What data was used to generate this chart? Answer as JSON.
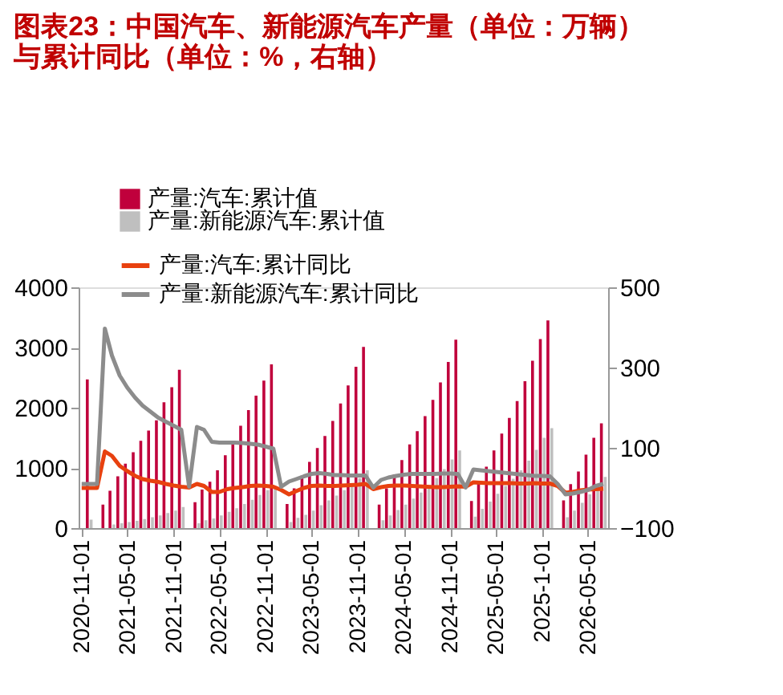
{
  "chart_data": {
    "type": "bar",
    "title": "图表23：中国汽车、新能源汽车产量（单位：万辆）与累计同比（单位：%，右轴）",
    "x": [
      "2020-11",
      "2020-12",
      "2021-01",
      "2021-02",
      "2021-03",
      "2021-04",
      "2021-05",
      "2021-06",
      "2021-07",
      "2021-08",
      "2021-09",
      "2021-10",
      "2021-11",
      "2021-12",
      "2022-01",
      "2022-02",
      "2022-03",
      "2022-04",
      "2022-05",
      "2022-06",
      "2022-07",
      "2022-08",
      "2022-09",
      "2022-10",
      "2022-11",
      "2022-12",
      "2023-01",
      "2023-02",
      "2023-03",
      "2023-04",
      "2023-05",
      "2023-06",
      "2023-07",
      "2023-08",
      "2023-09",
      "2023-10",
      "2023-11",
      "2023-12",
      "2024-01",
      "2024-02",
      "2024-03",
      "2024-04",
      "2024-05",
      "2024-06",
      "2024-07",
      "2024-08",
      "2024-09",
      "2024-10",
      "2024-11",
      "2024-12",
      "2025-01",
      "2025-02",
      "2025-03",
      "2025-04",
      "2025-05",
      "2025-06",
      "2025-07",
      "2025-08",
      "2025-09",
      "2025-10",
      "2025-11",
      "2025-12",
      "2026-01",
      "2026-02",
      "2026-03",
      "2026-04",
      "2026-05",
      "2026-06",
      "2026-07"
    ],
    "series": [
      {
        "name": "产量:汽车:累计值",
        "color": "#c0003c",
        "values": [
          null,
          2470,
          null,
          390,
          620,
          860,
          1070,
          1260,
          1450,
          1620,
          1790,
          2090,
          2340,
          2630,
          null,
          430,
          640,
          770,
          960,
          1210,
          1450,
          1700,
          1960,
          2200,
          2450,
          2720,
          null,
          400,
          660,
          870,
          1100,
          1330,
          1530,
          1780,
          2070,
          2370,
          2680,
          3010,
          null,
          390,
          660,
          890,
          1130,
          1390,
          1610,
          1860,
          2130,
          2420,
          2760,
          3130,
          null,
          450,
          760,
          1020,
          1290,
          1570,
          1830,
          2110,
          2440,
          2780,
          3140,
          3450,
          null,
          460,
          730,
          940,
          1220,
          1500,
          1740
        ]
      },
      {
        "name": "产量:新能源汽车:累计值",
        "color": "#bfbfbf",
        "values": [
          null,
          140,
          null,
          null,
          60,
          80,
          100,
          120,
          150,
          180,
          210,
          250,
          290,
          350,
          null,
          80,
          130,
          160,
          210,
          270,
          330,
          400,
          470,
          550,
          630,
          700,
          null,
          100,
          170,
          220,
          290,
          380,
          460,
          540,
          630,
          730,
          830,
          960,
          null,
          130,
          210,
          300,
          390,
          490,
          590,
          700,
          830,
          980,
          1140,
          1290,
          null,
          190,
          320,
          440,
          570,
          700,
          820,
          960,
          1120,
          1300,
          1500,
          1660,
          null,
          180,
          290,
          420,
          560,
          700,
          850
        ]
      },
      {
        "name": "产量:汽车:累计同比",
        "type": "line",
        "axis": "y2",
        "color": "#e8410f",
        "values": [
          0,
          0,
          0,
          91,
          80,
          55,
          42,
          30,
          22,
          18,
          15,
          10,
          6,
          3,
          1,
          10,
          5,
          -10,
          -10,
          -3,
          0,
          2,
          5,
          6,
          5,
          3,
          -5,
          -16,
          -8,
          0,
          5,
          6,
          5,
          5,
          6,
          7,
          8,
          10,
          -3,
          2,
          5,
          6,
          6,
          5,
          4,
          3,
          2,
          2,
          3,
          4,
          3,
          14,
          13,
          12,
          12,
          12,
          12,
          11,
          11,
          12,
          11,
          11,
          5,
          -12,
          -10,
          -6,
          -4,
          -3,
          -2
        ]
      },
      {
        "name": "产量:新能源汽车:累计同比",
        "type": "line",
        "axis": "y2",
        "color": "#8c8c8c",
        "values": [
          10,
          10,
          10,
          397,
          330,
          280,
          250,
          225,
          205,
          190,
          175,
          165,
          155,
          145,
          3,
          152,
          145,
          115,
          113,
          113,
          113,
          112,
          110,
          108,
          103,
          98,
          3,
          16,
          22,
          29,
          35,
          37,
          35,
          32,
          32,
          31,
          31,
          31,
          1,
          20,
          26,
          30,
          33,
          35,
          35,
          35,
          35,
          36,
          36,
          35,
          1,
          46,
          44,
          42,
          40,
          38,
          36,
          34,
          32,
          30,
          30,
          29,
          10,
          -16,
          -14,
          -10,
          -5,
          5,
          10
        ]
      }
    ],
    "xlim": [
      "2020-10-20",
      "2026-07-20"
    ],
    "xticks": [
      {
        "value": "2020-11",
        "label": "2020-11-01"
      },
      {
        "value": "2021-05",
        "label": "2021-05-01"
      },
      {
        "value": "2021-11",
        "label": "2021-11-01"
      },
      {
        "value": "2022-05",
        "label": "2022-05-01"
      },
      {
        "value": "2022-11",
        "label": "2022-11-01"
      },
      {
        "value": "2023-05",
        "label": "2023-05-01"
      },
      {
        "value": "2023-11",
        "label": "2023-11-01"
      },
      {
        "value": "2024-05",
        "label": "2024-05-01"
      },
      {
        "value": "2024-11",
        "label": "2024-11-01"
      },
      {
        "value": "2025-05",
        "label": "2025-05-01"
      },
      {
        "value": "2025-11",
        "label": "2025-1-01"
      },
      {
        "value": "2026-05",
        "label": "2026-05-01"
      }
    ],
    "ylim": [
      0,
      4000
    ],
    "yticks": [
      0,
      1000,
      2000,
      3000,
      4000
    ],
    "y2lim": [
      -100,
      500
    ],
    "y2ticks": [
      -100,
      100,
      300,
      500
    ],
    "grid": false,
    "legend": "top left",
    "marker": "none",
    "line_style": "solid"
  }
}
